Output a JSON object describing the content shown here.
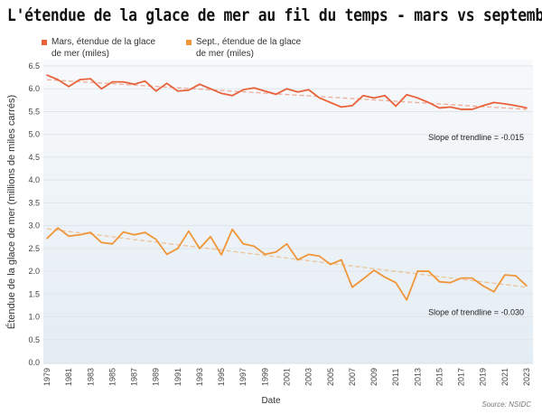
{
  "title": "L'étendue de la glace de mer au fil du temps - mars vs septembre",
  "source": "Source: NSIDC",
  "chart_data": {
    "type": "line",
    "title": "L'étendue de la glace de mer au fil du temps - mars vs septembre",
    "xlabel": "Date",
    "ylabel": "Étendue de la glace de mer (millions de miles carrés)",
    "ylim": [
      0,
      6.5
    ],
    "yticks": [
      "0.0",
      "0.5",
      "1.0",
      "1.5",
      "2.0",
      "2.5",
      "3.0",
      "3.5",
      "4.0",
      "4.5",
      "5.0",
      "5.5",
      "6.0",
      "6.5"
    ],
    "xticks": [
      "1979",
      "1981",
      "1983",
      "1985",
      "1987",
      "1989",
      "1991",
      "1993",
      "1995",
      "1997",
      "1999",
      "2001",
      "2003",
      "2005",
      "2007",
      "2009",
      "2011",
      "2013",
      "2015",
      "2017",
      "2019",
      "2021",
      "2023"
    ],
    "grid": true,
    "legend": "top-left",
    "x": [
      1979,
      1980,
      1981,
      1982,
      1983,
      1984,
      1985,
      1986,
      1987,
      1988,
      1989,
      1990,
      1991,
      1992,
      1993,
      1994,
      1995,
      1996,
      1997,
      1998,
      1999,
      2000,
      2001,
      2002,
      2003,
      2004,
      2005,
      2006,
      2007,
      2008,
      2009,
      2010,
      2011,
      2012,
      2013,
      2014,
      2015,
      2016,
      2017,
      2018,
      2019,
      2020,
      2021,
      2022,
      2023
    ],
    "series": [
      {
        "name": "Mars, étendue de la glace de mer (miles)",
        "color": "#e8623a",
        "values": [
          6.3,
          6.2,
          6.05,
          6.2,
          6.22,
          6.0,
          6.15,
          6.15,
          6.1,
          6.17,
          5.95,
          6.12,
          5.95,
          5.97,
          6.1,
          6.0,
          5.9,
          5.85,
          5.98,
          6.02,
          5.95,
          5.88,
          6.0,
          5.93,
          5.98,
          5.8,
          5.7,
          5.6,
          5.63,
          5.85,
          5.8,
          5.85,
          5.62,
          5.87,
          5.8,
          5.7,
          5.58,
          5.6,
          5.55,
          5.55,
          5.63,
          5.7,
          5.67,
          5.63,
          5.58
        ],
        "trend": {
          "start": 6.2,
          "end": 5.55,
          "annotation": "Slope of trendline = -0.015"
        }
      },
      {
        "name": "Sept., étendue de la glace de mer (miles)",
        "color": "#f0963a",
        "values": [
          2.72,
          2.95,
          2.77,
          2.8,
          2.85,
          2.63,
          2.6,
          2.86,
          2.8,
          2.85,
          2.7,
          2.37,
          2.5,
          2.88,
          2.5,
          2.76,
          2.36,
          2.92,
          2.6,
          2.55,
          2.37,
          2.42,
          2.6,
          2.25,
          2.37,
          2.33,
          2.15,
          2.25,
          1.65,
          1.83,
          2.02,
          1.87,
          1.75,
          1.37,
          2.0,
          2.0,
          1.77,
          1.75,
          1.85,
          1.85,
          1.68,
          1.55,
          1.92,
          1.9,
          1.68
        ],
        "trend": {
          "start": 2.93,
          "end": 1.65,
          "annotation": "Slope of trendline = -0.030"
        }
      }
    ]
  }
}
